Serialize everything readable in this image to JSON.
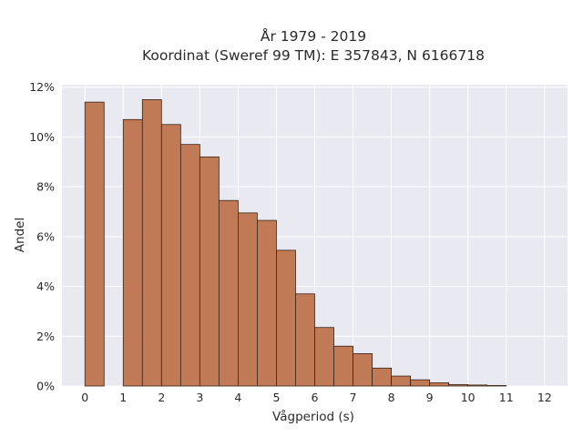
{
  "chart_data": {
    "type": "bar",
    "title_line1": "År 1979 - 2019",
    "title_line2": "Koordinat (Sweref 99 TM): E 357843, N 6166718",
    "xlabel": "Vågperiod (s)",
    "ylabel": "Andel",
    "xlim": [
      -0.6,
      12.6
    ],
    "ylim": [
      0,
      12.1
    ],
    "bin_width": 0.5,
    "x_ticks": [
      0,
      1,
      2,
      3,
      4,
      5,
      6,
      7,
      8,
      9,
      10,
      11,
      12
    ],
    "x_tick_labels": [
      "0",
      "1",
      "2",
      "3",
      "4",
      "5",
      "6",
      "7",
      "8",
      "9",
      "10",
      "11",
      "12"
    ],
    "y_ticks": [
      0,
      2,
      4,
      6,
      8,
      10,
      12
    ],
    "y_tick_labels": [
      "0%",
      "2%",
      "4%",
      "6%",
      "8%",
      "10%",
      "12%"
    ],
    "bin_starts": [
      0,
      1,
      1.5,
      2,
      2.5,
      3,
      3.5,
      4,
      4.5,
      5,
      5.5,
      6,
      6.5,
      7,
      7.5,
      8,
      8.5,
      9,
      9.5,
      10,
      10.5
    ],
    "values": [
      11.4,
      10.7,
      11.5,
      10.5,
      9.7,
      9.2,
      7.45,
      6.95,
      6.65,
      5.45,
      3.7,
      2.35,
      1.6,
      1.3,
      0.72,
      0.4,
      0.25,
      0.13,
      0.06,
      0.04,
      0.02
    ],
    "grid": true,
    "bar_color": "#c07a55",
    "bar_edge_color": "#3a2418",
    "plot_bg_color": "#e9e9f2",
    "grid_color": "#ffffff"
  }
}
